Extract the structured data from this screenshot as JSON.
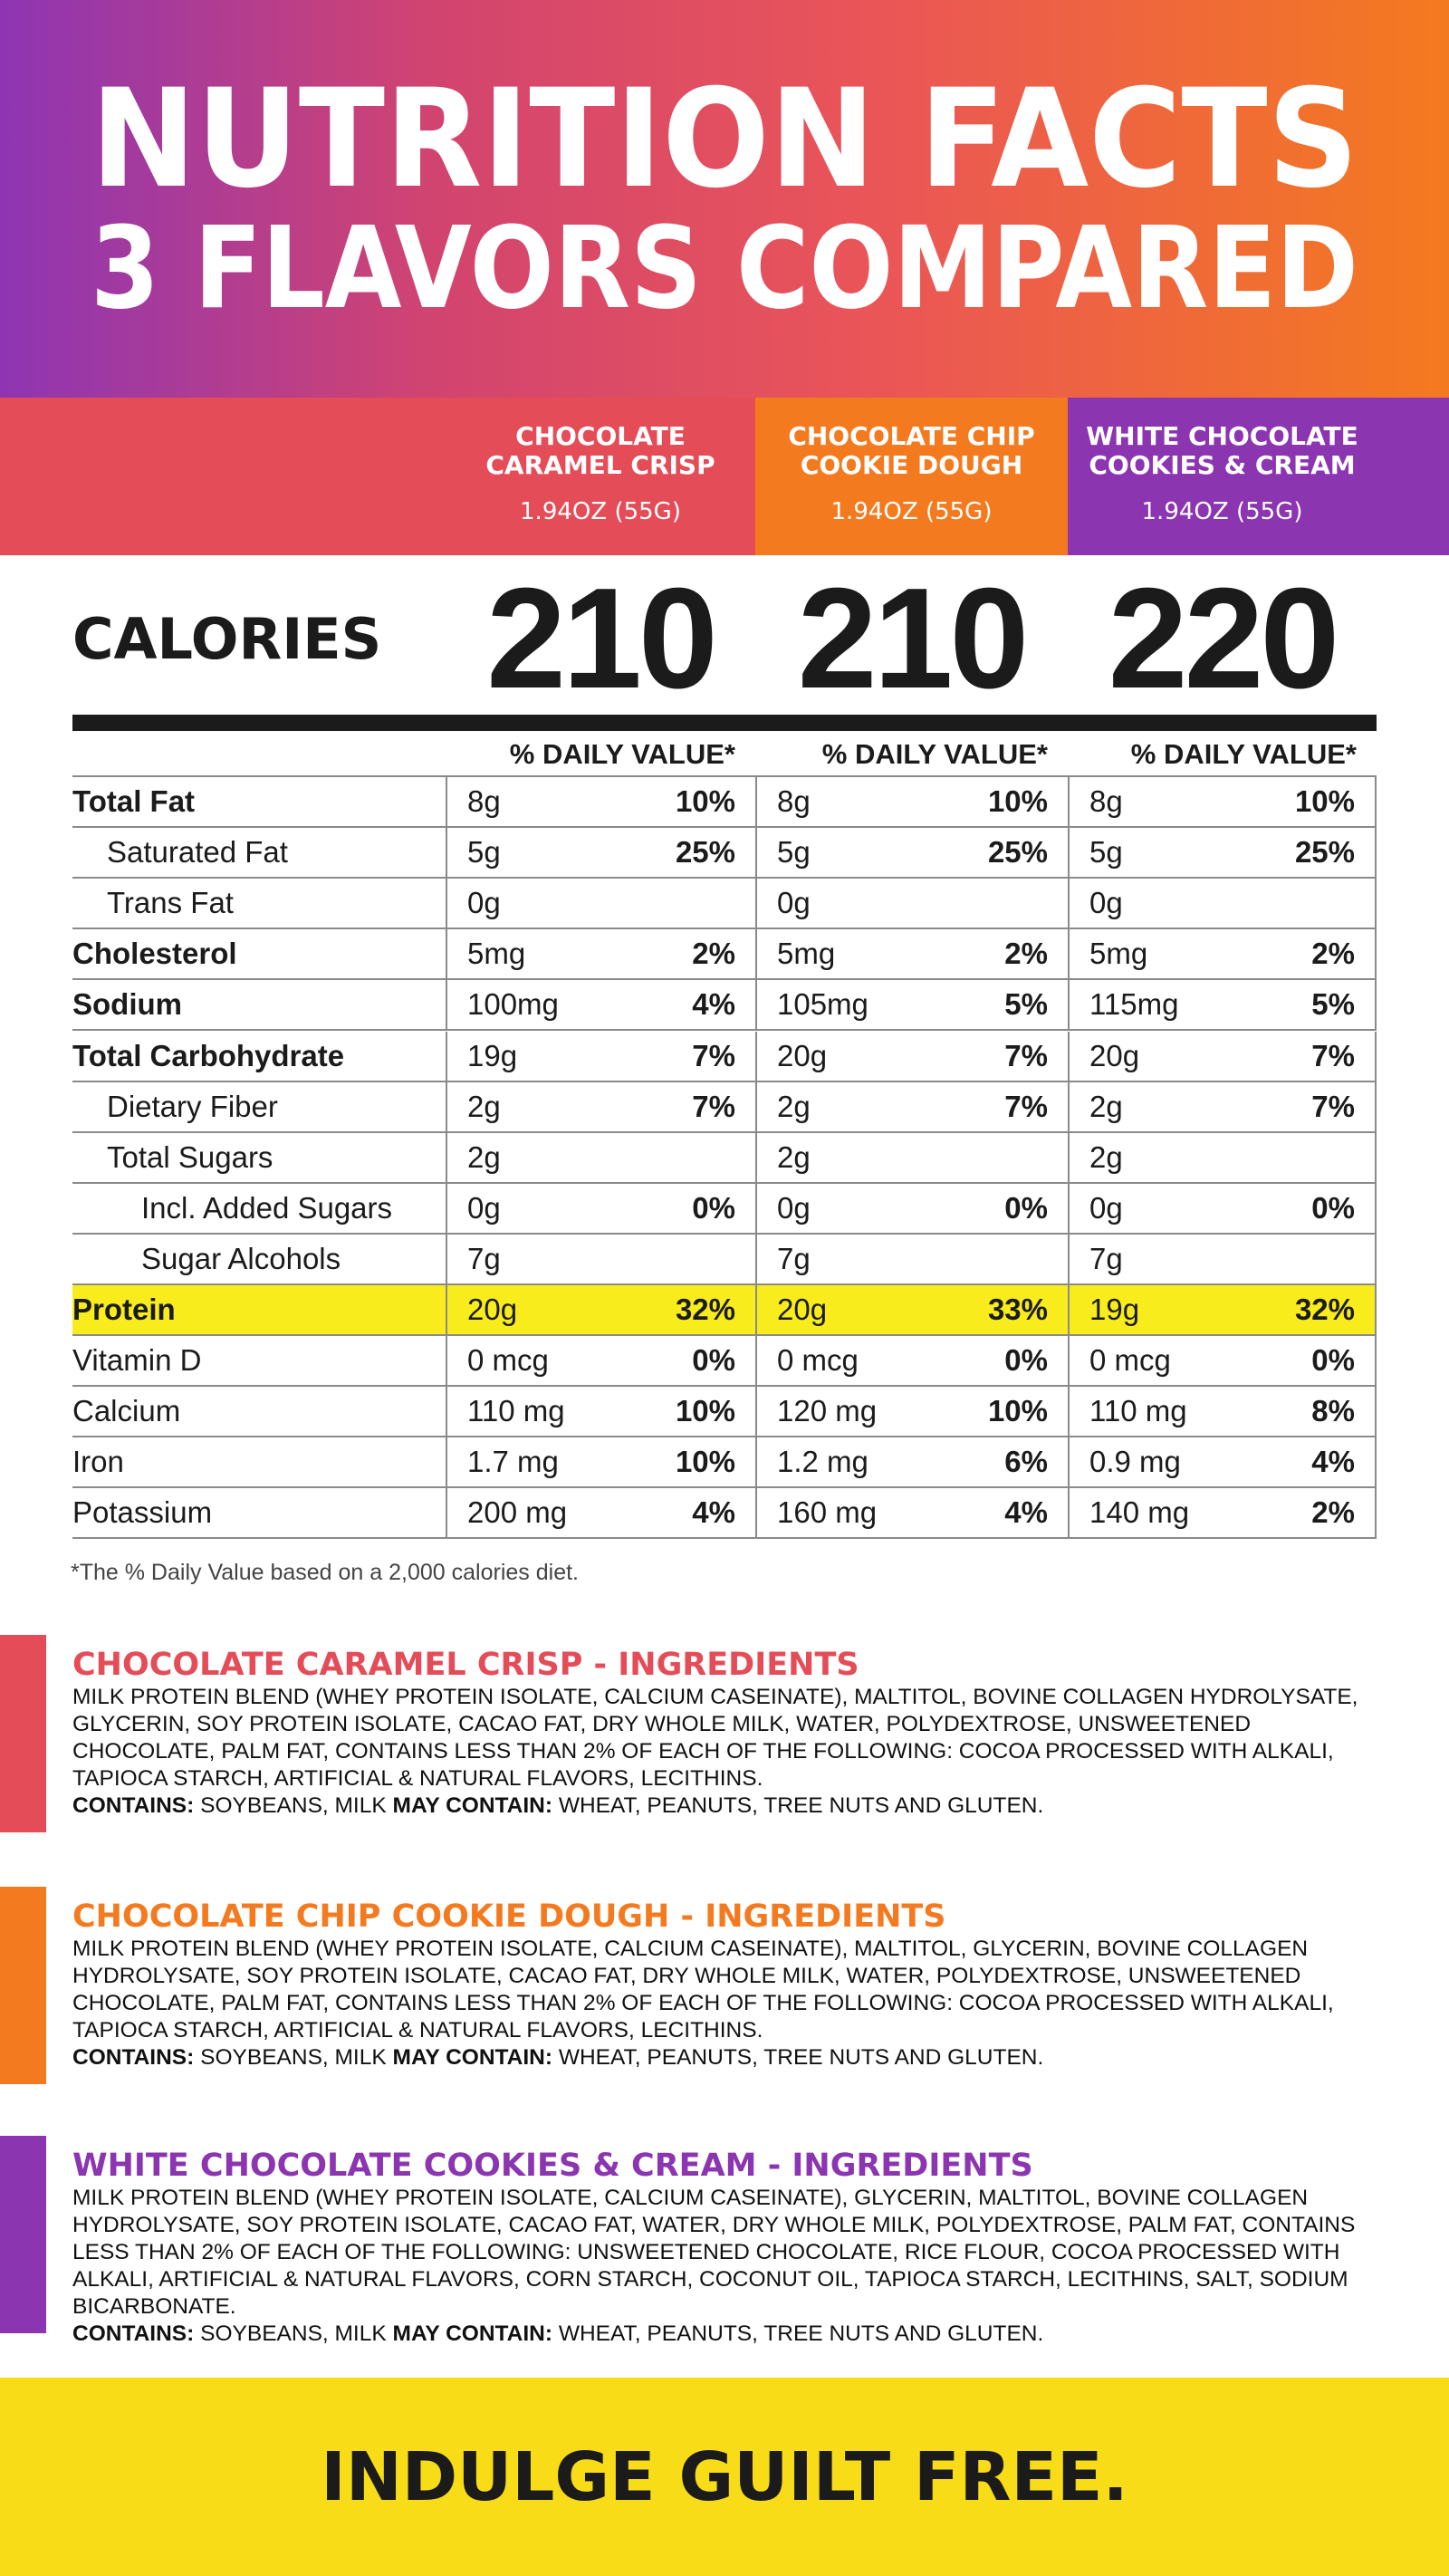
{
  "header": {
    "title_line1": "NUTRITION FACTS",
    "title_line2": "3 FLAVORS COMPARED"
  },
  "flavors": [
    {
      "name_lines": [
        "CHOCOLATE",
        "CARAMEL CRISP"
      ],
      "size": "1.94OZ (55G)",
      "color": "#e44c58"
    },
    {
      "name_lines": [
        "CHOCOLATE CHIP",
        "COOKIE DOUGH"
      ],
      "size": "1.94OZ (55G)",
      "color": "#f47a1f"
    },
    {
      "name_lines": [
        "WHITE CHOCOLATE",
        "COOKIES & CREAM"
      ],
      "size": "1.94OZ (55G)",
      "color": "#8c35b1"
    }
  ],
  "calories_label": "CALORIES",
  "calories": [
    210,
    210,
    220
  ],
  "daily_value_heading": "% DAILY VALUE*",
  "rows": [
    {
      "label": "Total Fat",
      "level": 0,
      "bold": true,
      "cells": [
        {
          "amount": "8g",
          "dv": "10%"
        },
        {
          "amount": "8g",
          "dv": "10%"
        },
        {
          "amount": "8g",
          "dv": "10%"
        }
      ]
    },
    {
      "label": "Saturated Fat",
      "level": 1,
      "bold": false,
      "cells": [
        {
          "amount": "5g",
          "dv": "25%"
        },
        {
          "amount": "5g",
          "dv": "25%"
        },
        {
          "amount": "5g",
          "dv": "25%"
        }
      ]
    },
    {
      "label": "Trans Fat",
      "level": 1,
      "bold": false,
      "cells": [
        {
          "amount": "0g"
        },
        {
          "amount": "0g"
        },
        {
          "amount": "0g"
        }
      ]
    },
    {
      "label": "Cholesterol",
      "level": 0,
      "bold": true,
      "cells": [
        {
          "amount": "5mg",
          "dv": "2%"
        },
        {
          "amount": "5mg",
          "dv": "2%"
        },
        {
          "amount": "5mg",
          "dv": "2%"
        }
      ]
    },
    {
      "label": "Sodium",
      "level": 0,
      "bold": true,
      "cells": [
        {
          "amount": "100mg",
          "dv": "4%"
        },
        {
          "amount": "105mg",
          "dv": "5%"
        },
        {
          "amount": "115mg",
          "dv": "5%"
        }
      ]
    },
    {
      "label": "Total Carbohydrate",
      "level": 0,
      "bold": true,
      "cells": [
        {
          "amount": "19g",
          "dv": "7%"
        },
        {
          "amount": "20g",
          "dv": "7%"
        },
        {
          "amount": "20g",
          "dv": "7%"
        }
      ]
    },
    {
      "label": "Dietary Fiber",
      "level": 1,
      "bold": false,
      "cells": [
        {
          "amount": "2g",
          "dv": "7%"
        },
        {
          "amount": "2g",
          "dv": "7%"
        },
        {
          "amount": "2g",
          "dv": "7%"
        }
      ]
    },
    {
      "label": "Total Sugars",
      "level": 1,
      "bold": false,
      "cells": [
        {
          "amount": "2g"
        },
        {
          "amount": "2g"
        },
        {
          "amount": "2g"
        }
      ]
    },
    {
      "label": "Incl. Added Sugars",
      "level": 2,
      "bold": false,
      "cells": [
        {
          "amount": "0g",
          "dv": "0%"
        },
        {
          "amount": "0g",
          "dv": "0%"
        },
        {
          "amount": "0g",
          "dv": "0%"
        }
      ]
    },
    {
      "label": "Sugar Alcohols",
      "level": 2,
      "bold": false,
      "cells": [
        {
          "amount": "7g"
        },
        {
          "amount": "7g"
        },
        {
          "amount": "7g"
        }
      ]
    },
    {
      "label": "Protein",
      "level": 0,
      "bold": true,
      "highlight": "#f8ec1c",
      "cells": [
        {
          "amount": "20g",
          "dv": "32%"
        },
        {
          "amount": "20g",
          "dv": "33%"
        },
        {
          "amount": "19g",
          "dv": "32%"
        }
      ]
    },
    {
      "label": "Vitamin D",
      "level": 0,
      "bold": false,
      "cells": [
        {
          "amount": "0 mcg",
          "dv": "0%"
        },
        {
          "amount": "0 mcg",
          "dv": "0%"
        },
        {
          "amount": "0 mcg",
          "dv": "0%"
        }
      ]
    },
    {
      "label": "Calcium",
      "level": 0,
      "bold": false,
      "cells": [
        {
          "amount": "110 mg",
          "dv": "10%"
        },
        {
          "amount": "120 mg",
          "dv": "10%"
        },
        {
          "amount": "110 mg",
          "dv": "8%"
        }
      ]
    },
    {
      "label": "Iron",
      "level": 0,
      "bold": false,
      "cells": [
        {
          "amount": "1.7 mg",
          "dv": "10%"
        },
        {
          "amount": "1.2 mg",
          "dv": "6%"
        },
        {
          "amount": "0.9 mg",
          "dv": "4%"
        }
      ]
    },
    {
      "label": "Potassium",
      "level": 0,
      "bold": false,
      "cells": [
        {
          "amount": "200 mg",
          "dv": "4%"
        },
        {
          "amount": "160 mg",
          "dv": "4%"
        },
        {
          "amount": "140 mg",
          "dv": "2%"
        }
      ]
    }
  ],
  "footnote": "*The % Daily Value based on a 2,000 calories diet.",
  "ingredients": [
    {
      "title": "CHOCOLATE CARAMEL CRISP - INGREDIENTS",
      "text": "MILK PROTEIN BLEND (WHEY PROTEIN ISOLATE, CALCIUM CASEINATE), MALTITOL, BOVINE COLLAGEN HYDROLYSATE, GLYCERIN, SOY PROTEIN ISOLATE, CACAO FAT, DRY WHOLE MILK, WATER, POLYDEXTROSE, UNSWEETENED CHOCOLATE, PALM FAT, CONTAINS LESS THAN 2% OF EACH OF THE FOLLOWING: COCOA PROCESSED WITH ALKALI, TAPIOCA STARCH, ARTIFICIAL & NATURAL FLAVORS, LECITHINS.",
      "contains_label": "CONTAINS:",
      "contains": "SOYBEANS, MILK",
      "may_contain_label": "MAY CONTAIN:",
      "may_contain": "WHEAT, PEANUTS, TREE NUTS AND GLUTEN."
    },
    {
      "title": "CHOCOLATE CHIP COOKIE DOUGH - INGREDIENTS",
      "text": "MILK PROTEIN BLEND (WHEY PROTEIN ISOLATE, CALCIUM CASEINATE), MALTITOL, GLYCERIN, BOVINE COLLAGEN HYDROLYSATE, SOY PROTEIN ISOLATE, CACAO FAT, DRY WHOLE MILK, WATER, POLYDEXTROSE, UNSWEETENED CHOCOLATE, PALM FAT, CONTAINS LESS THAN 2% OF EACH OF THE FOLLOWING: COCOA PROCESSED WITH ALKALI, TAPIOCA STARCH, ARTIFICIAL & NATURAL FLAVORS, LECITHINS.",
      "contains_label": "CONTAINS:",
      "contains": "SOYBEANS, MILK",
      "may_contain_label": "MAY CONTAIN:",
      "may_contain": "WHEAT, PEANUTS, TREE NUTS AND GLUTEN."
    },
    {
      "title": "WHITE CHOCOLATE COOKIES & CREAM - INGREDIENTS",
      "text": "MILK PROTEIN BLEND (WHEY PROTEIN ISOLATE, CALCIUM CASEINATE), GLYCERIN, MALTITOL, BOVINE COLLAGEN HYDROLYSATE, SOY PROTEIN ISOLATE, CACAO FAT, WATER, DRY WHOLE MILK, POLYDEXTROSE, PALM FAT, CONTAINS LESS THAN 2% OF EACH OF THE FOLLOWING: UNSWEETENED CHOCOLATE, RICE FLOUR, COCOA PROCESSED WITH ALKALI, ARTIFICIAL & NATURAL FLAVORS, CORN STARCH, COCONUT OIL, TAPIOCA STARCH, LECITHINS, SALT, SODIUM BICARBONATE.",
      "contains_label": "CONTAINS:",
      "contains": "SOYBEANS, MILK",
      "may_contain_label": "MAY CONTAIN:",
      "may_contain": "WHEAT, PEANUTS, TREE NUTS AND GLUTEN."
    }
  ],
  "footer": "INDULGE GUILT FREE."
}
